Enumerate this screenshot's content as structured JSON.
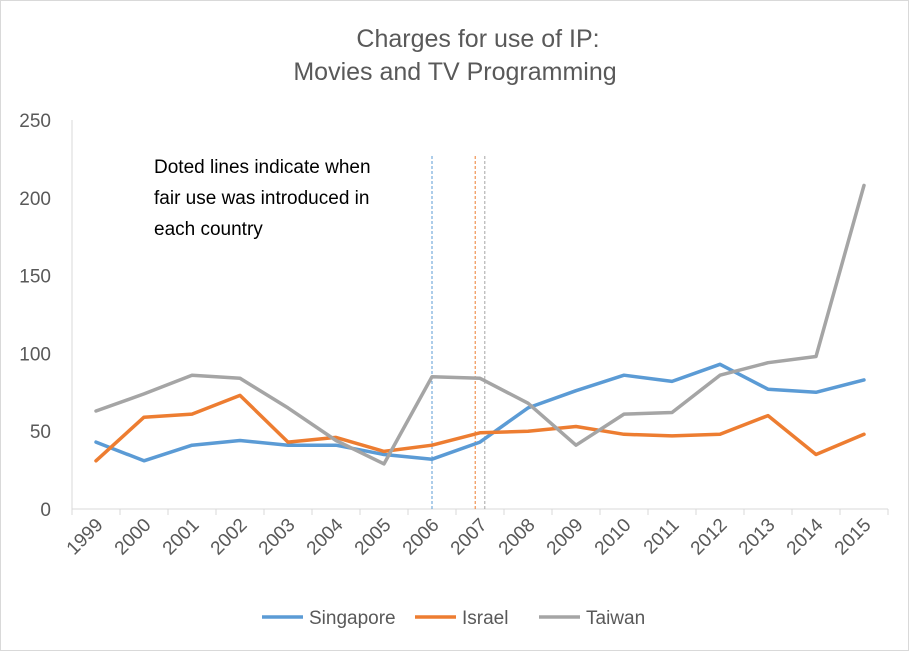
{
  "chart_data": {
    "type": "line",
    "title_lines": [
      "Charges for use of IP:",
      "Movies and TV Programming"
    ],
    "xlabel": "",
    "ylabel": "",
    "categories": [
      "1999",
      "2000",
      "2001",
      "2002",
      "2003",
      "2004",
      "2005",
      "2006",
      "2007",
      "2008",
      "2009",
      "2010",
      "2011",
      "2012",
      "2013",
      "2014",
      "2015"
    ],
    "ylim": [
      0,
      250
    ],
    "yticks": [
      0,
      50,
      100,
      150,
      200,
      250
    ],
    "grid": false,
    "legend_position": "bottom",
    "series": [
      {
        "name": "Singapore",
        "color": "#5b9bd5",
        "values": [
          43,
          31,
          41,
          44,
          41,
          41,
          35,
          32,
          43,
          65,
          76,
          86,
          82,
          93,
          77,
          75,
          83
        ]
      },
      {
        "name": "Israel",
        "color": "#ed7d31",
        "values": [
          31,
          59,
          61,
          73,
          43,
          46,
          37,
          41,
          49,
          50,
          53,
          48,
          47,
          48,
          60,
          35,
          48
        ]
      },
      {
        "name": "Taiwan",
        "color": "#a5a5a5",
        "values": [
          63,
          74,
          86,
          84,
          65,
          44,
          29,
          85,
          84,
          68,
          41,
          61,
          62,
          86,
          94,
          98,
          208
        ]
      }
    ],
    "reference_lines": [
      {
        "country": "Singapore",
        "x": 2006.0,
        "color": "#5b9bd5"
      },
      {
        "country": "Israel",
        "x": 2006.9,
        "color": "#ed7d31"
      },
      {
        "country": "Taiwan",
        "x": 2007.1,
        "color": "#a5a5a5"
      }
    ],
    "annotation_lines": [
      "Doted lines indicate when",
      "fair use was introduced in",
      "each country"
    ]
  }
}
